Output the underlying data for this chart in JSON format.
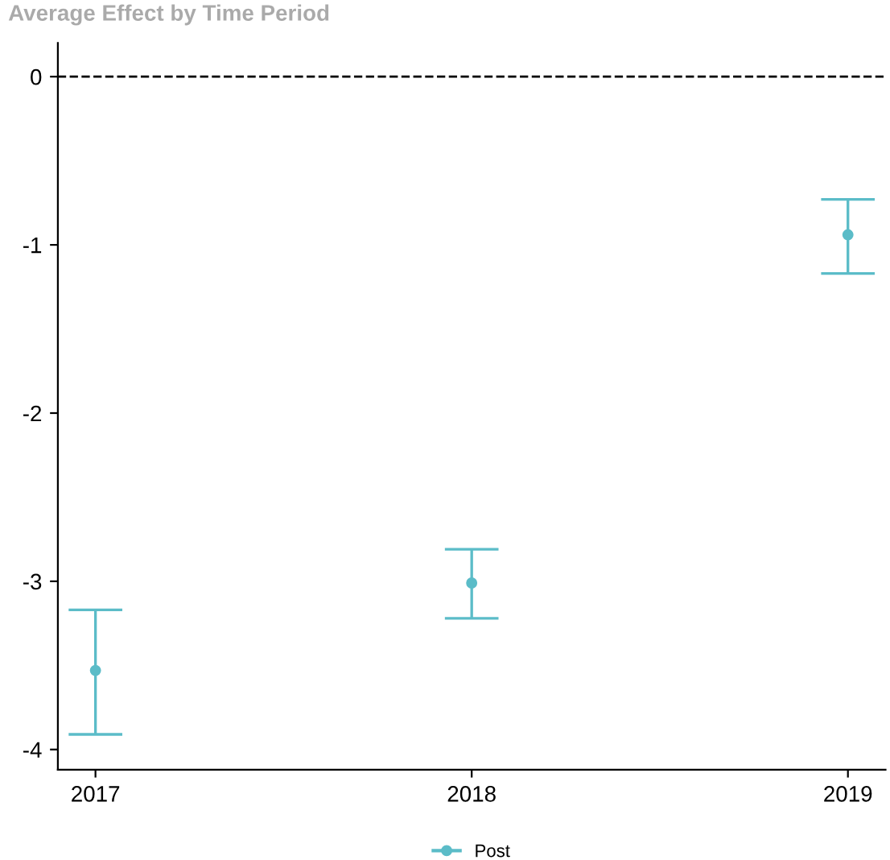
{
  "chart_data": {
    "type": "scatter",
    "title": "Average Effect by Time Period",
    "categories": [
      "2017",
      "2018",
      "2019"
    ],
    "series": [
      {
        "name": "Post",
        "color": "#5bbcc8",
        "values": [
          -3.53,
          -3.01,
          -0.94
        ],
        "errors": [
          [
            -3.91,
            -3.17
          ],
          [
            -3.22,
            -2.81
          ],
          [
            -1.17,
            -0.73
          ]
        ]
      }
    ],
    "ylim": [
      -4.12,
      0.2
    ],
    "yticks": [
      0,
      -1,
      -2,
      -3,
      -4
    ],
    "ref_lines": [
      {
        "axis": "y",
        "value": 0,
        "color": "#000000",
        "line_style": "dashed"
      }
    ],
    "grid": false,
    "legend": "bottom",
    "marker": "circle"
  }
}
